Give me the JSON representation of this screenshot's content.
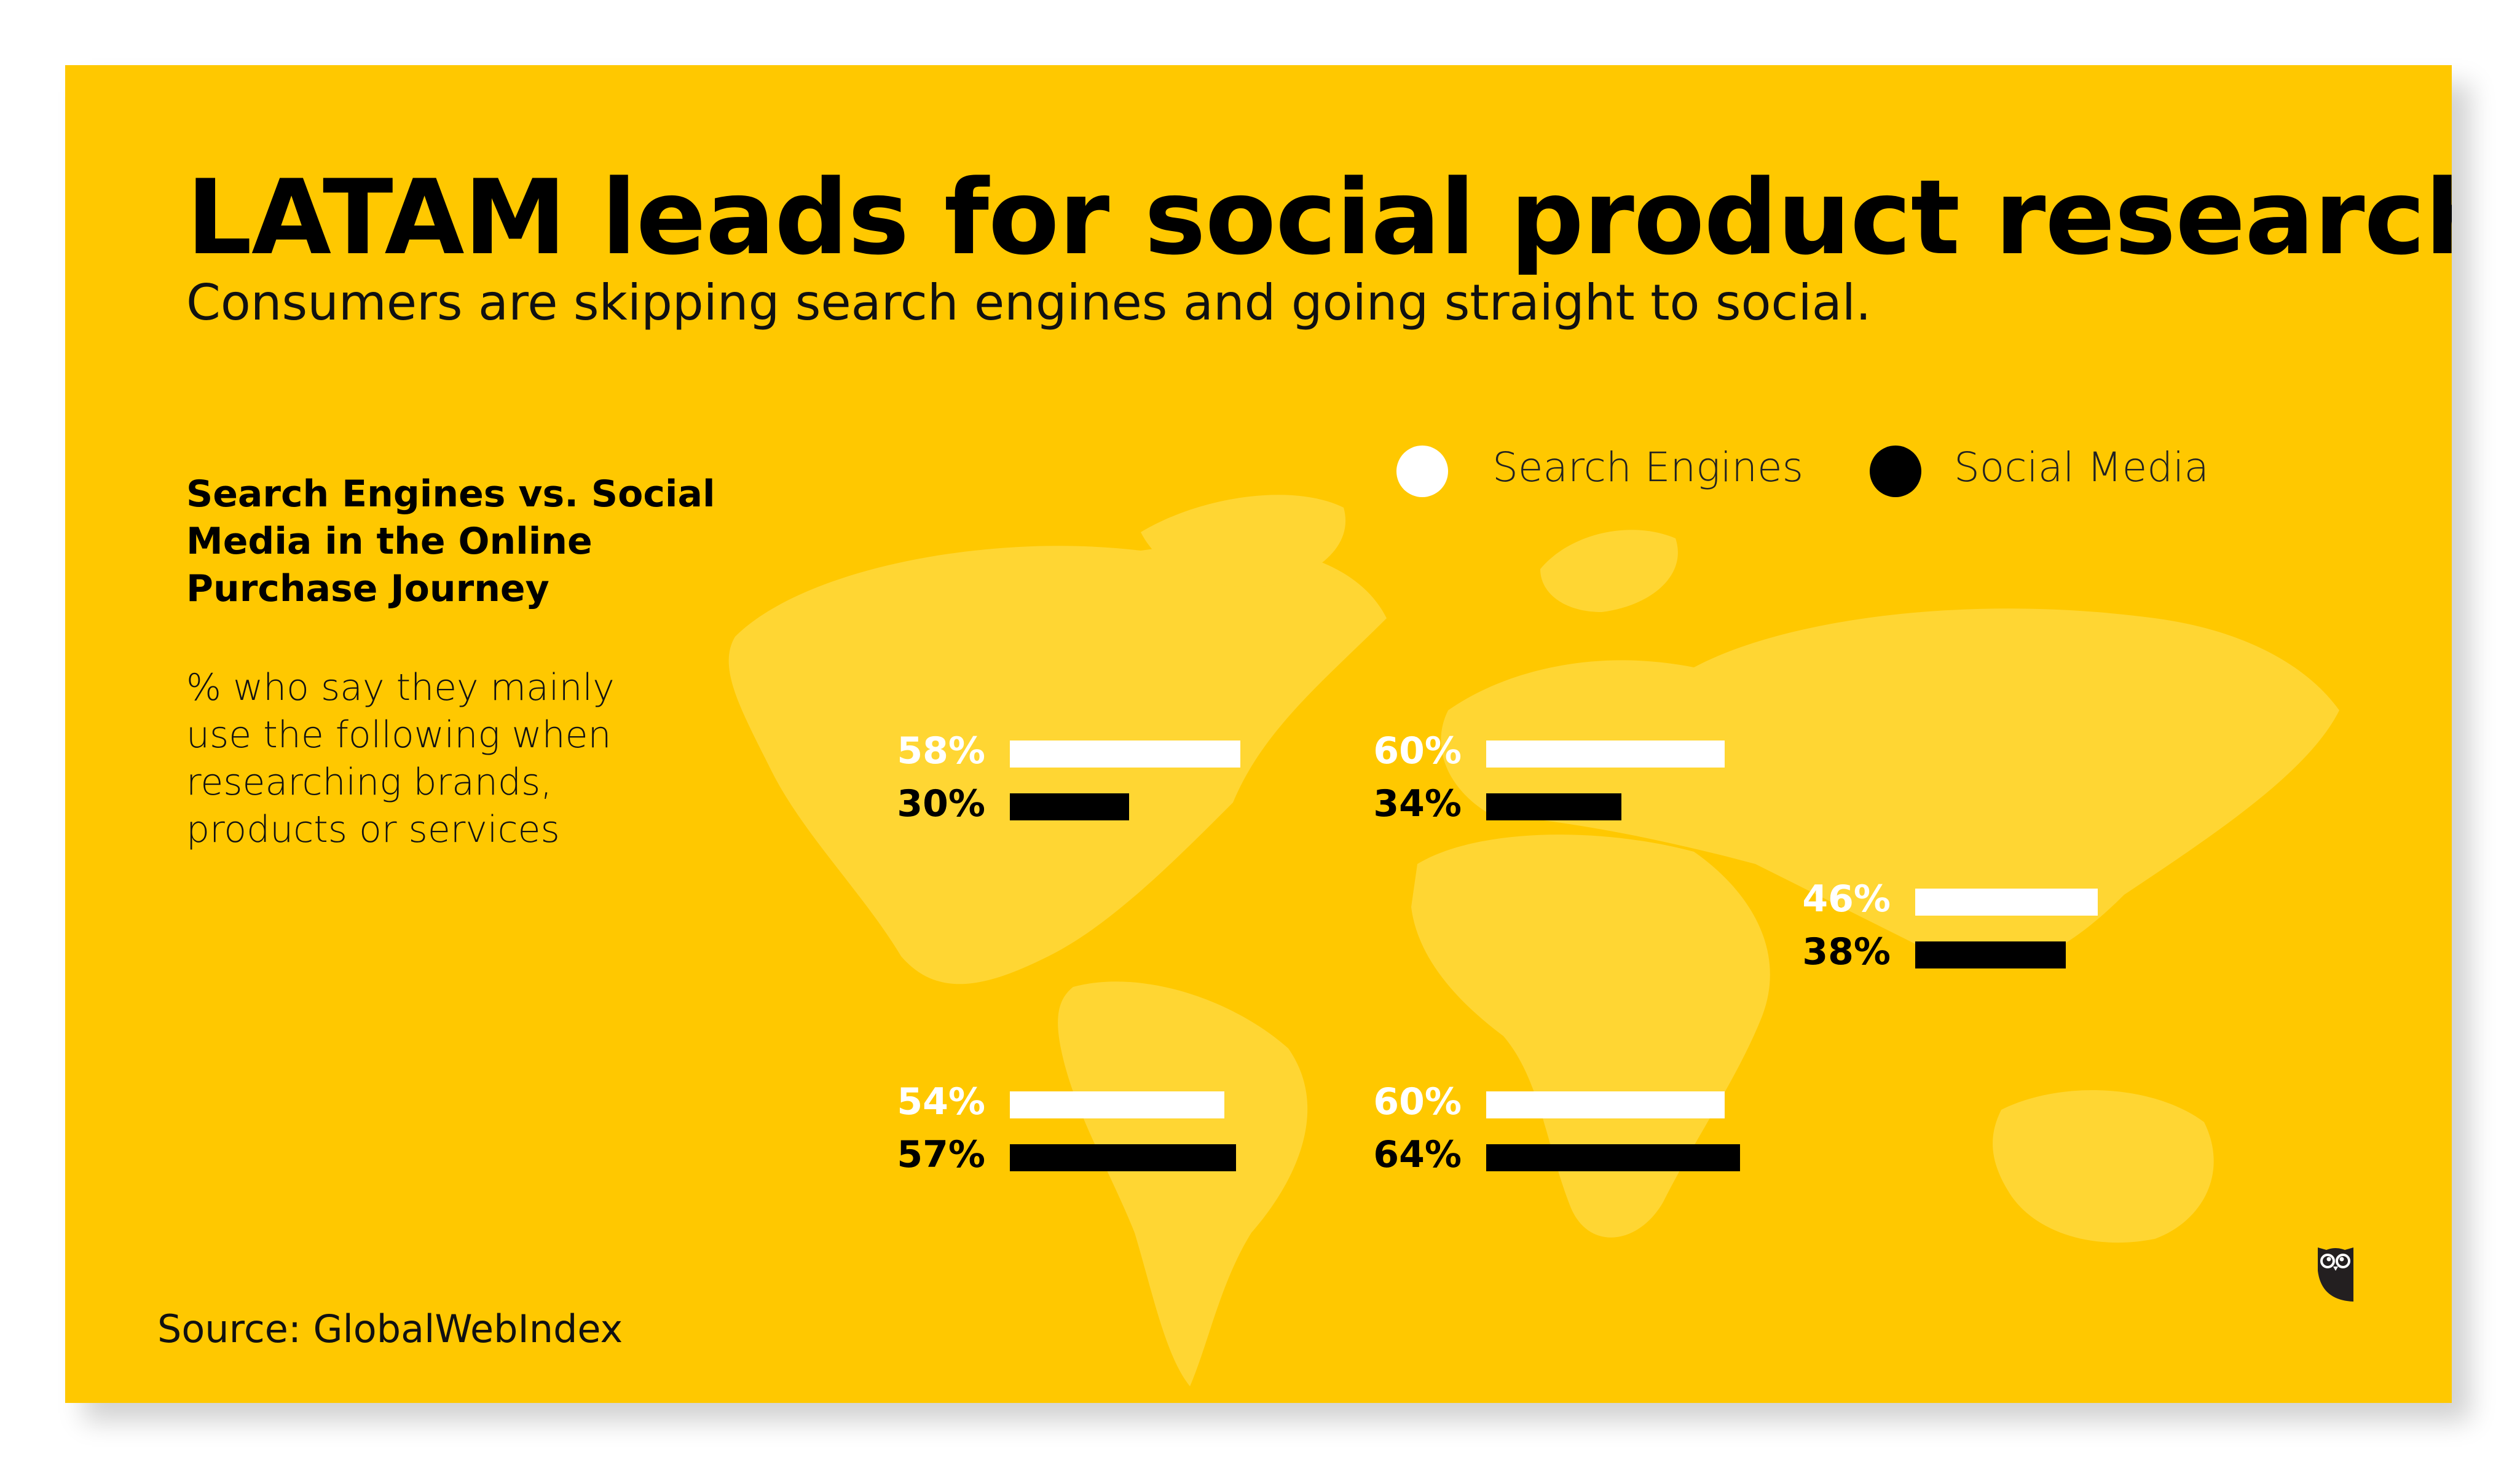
{
  "title": "LATAM leads for social product research.",
  "subtitle": "Consumers are skipping search engines and going straight to social.",
  "side_title": "Search Engines vs. Social Media in the Online Purchase Journey",
  "side_description": "% who say they mainly use the following when researching brands, products or services",
  "source": "Source: GlobalWebIndex",
  "logo": "owl-logo",
  "colors": {
    "background": "#FFC800",
    "map": "#FFD633",
    "search_engines": "#FFFFFF",
    "social_media": "#000000"
  },
  "chart_data": {
    "type": "bar",
    "orientation": "horizontal",
    "legend": "top-right",
    "series": [
      {
        "name": "Search Engines",
        "color": "#FFFFFF",
        "values": [
          58,
          60,
          46,
          54,
          60
        ]
      },
      {
        "name": "Social Media",
        "color": "#000000",
        "values": [
          30,
          34,
          38,
          57,
          64
        ]
      }
    ],
    "labels": [
      [
        "58%",
        "30%"
      ],
      [
        "60%",
        "34%"
      ],
      [
        "46%",
        "38%"
      ],
      [
        "54%",
        "57%"
      ],
      [
        "60%",
        "64%"
      ]
    ]
  }
}
